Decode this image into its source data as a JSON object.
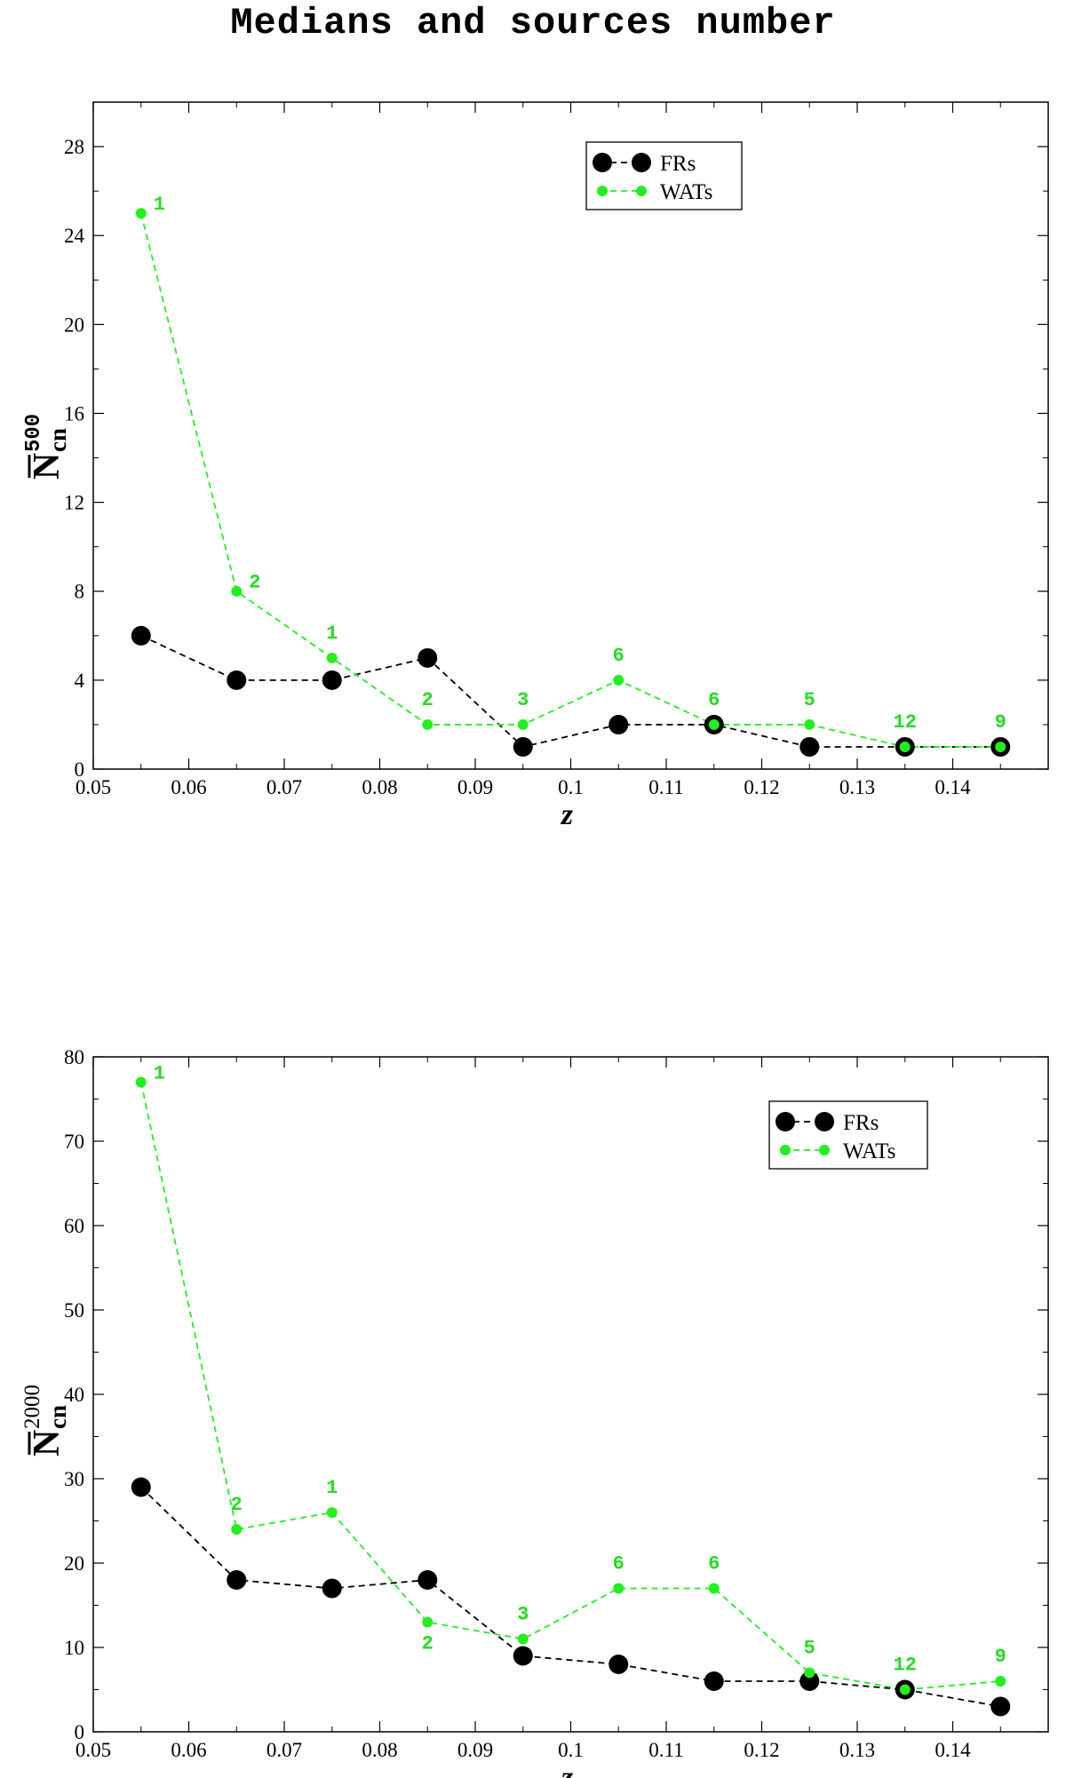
{
  "title": "Medians and sources number",
  "colors": {
    "frs": "#000000",
    "wats": "#22ee22",
    "wats_label": "#22dd22"
  },
  "chart_data": [
    {
      "type": "line",
      "title": "",
      "xlabel": "z",
      "ylabel": {
        "main": "N",
        "sub": "cn",
        "sup": "500"
      },
      "xlim": [
        0.05,
        0.15
      ],
      "ylim": [
        0,
        30
      ],
      "xticks": [
        0.05,
        0.06,
        0.07,
        0.08,
        0.09,
        0.1,
        0.11,
        0.12,
        0.13,
        0.14
      ],
      "xtick_labels": [
        "0.05",
        "0.06",
        "0.07",
        "0.08",
        "0.09",
        "0.1",
        "0.11",
        "0.12",
        "0.13",
        "0.14"
      ],
      "yticks": [
        0,
        4,
        8,
        12,
        16,
        20,
        24,
        28
      ],
      "ytick_labels": [
        "0",
        "4",
        "8",
        "12",
        "16",
        "20",
        "24",
        "28"
      ],
      "grid": false,
      "legend": {
        "position": "top-right",
        "entries": [
          "FRs",
          "WATs"
        ]
      },
      "x": [
        0.055,
        0.065,
        0.075,
        0.085,
        0.095,
        0.105,
        0.115,
        0.125,
        0.135,
        0.145
      ],
      "series": [
        {
          "name": "FRs",
          "values": [
            6,
            4,
            4,
            5,
            1,
            2,
            2,
            1,
            1,
            1
          ]
        },
        {
          "name": "WATs",
          "values": [
            25,
            8,
            5,
            2,
            2,
            4,
            2,
            2,
            1,
            1
          ]
        }
      ],
      "annotations": [
        "1",
        "2",
        "1",
        "2",
        "3",
        "6",
        "6",
        "5",
        "12",
        "9"
      ],
      "annotation_positions": [
        "right",
        "right",
        "above",
        "above",
        "above",
        "above",
        "above",
        "above",
        "above",
        "above"
      ]
    },
    {
      "type": "line",
      "title": "",
      "xlabel": "z",
      "ylabel": {
        "main": "N",
        "sub": "cn",
        "sup": "2000"
      },
      "xlim": [
        0.05,
        0.15
      ],
      "ylim": [
        0,
        80
      ],
      "xticks": [
        0.05,
        0.06,
        0.07,
        0.08,
        0.09,
        0.1,
        0.11,
        0.12,
        0.13,
        0.14
      ],
      "xtick_labels": [
        "0.05",
        "0.06",
        "0.07",
        "0.08",
        "0.09",
        "0.1",
        "0.11",
        "0.12",
        "0.13",
        "0.14"
      ],
      "yticks": [
        0,
        10,
        20,
        30,
        40,
        50,
        60,
        70,
        80
      ],
      "ytick_labels": [
        "0",
        "10",
        "20",
        "30",
        "40",
        "50",
        "60",
        "70",
        "80"
      ],
      "grid": false,
      "legend": {
        "position": "top-right",
        "entries": [
          "FRs",
          "WATs"
        ]
      },
      "x": [
        0.055,
        0.065,
        0.075,
        0.085,
        0.095,
        0.105,
        0.115,
        0.125,
        0.135,
        0.145
      ],
      "series": [
        {
          "name": "FRs",
          "values": [
            29,
            18,
            17,
            18,
            9,
            8,
            6,
            6,
            5,
            3
          ]
        },
        {
          "name": "WATs",
          "values": [
            77,
            24,
            26,
            13,
            11,
            17,
            17,
            7,
            5,
            6
          ]
        }
      ],
      "annotations": [
        "1",
        "2",
        "1",
        "2",
        "3",
        "6",
        "6",
        "5",
        "12",
        "9"
      ],
      "annotation_positions": [
        "right",
        "above",
        "above",
        "below",
        "above",
        "above",
        "above",
        "above",
        "above",
        "above"
      ]
    }
  ]
}
